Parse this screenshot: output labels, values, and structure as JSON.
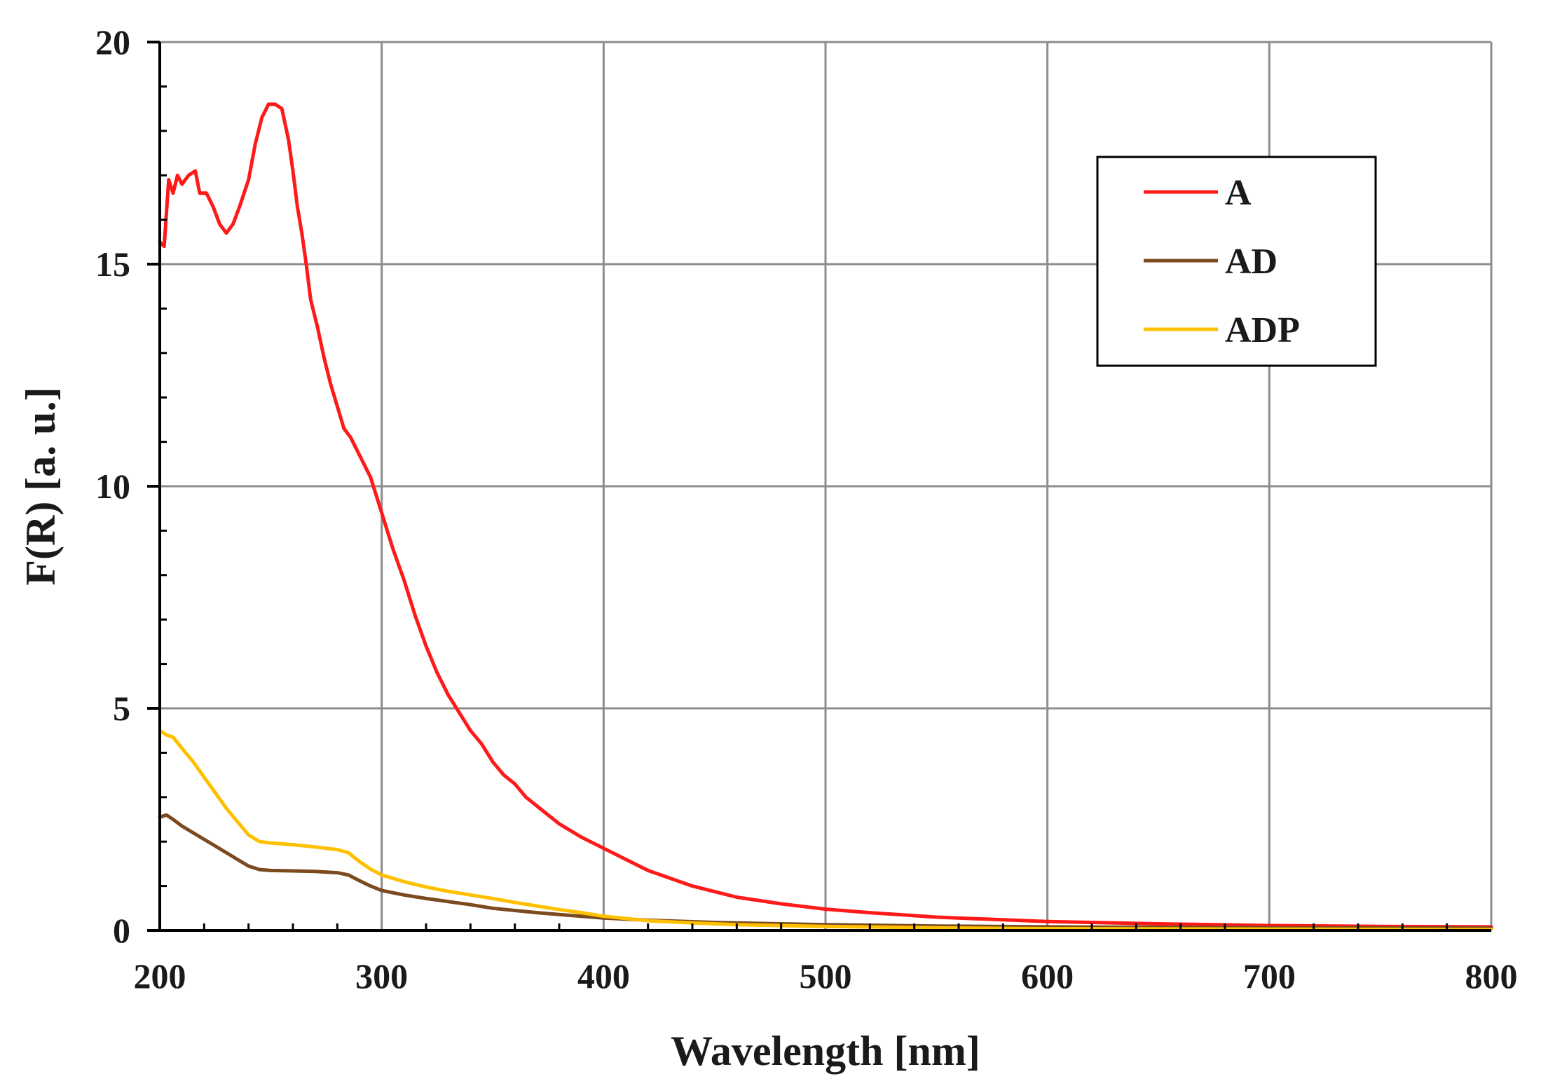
{
  "chart_data": {
    "type": "line",
    "title": "",
    "xlabel": "Wavelength [nm]",
    "ylabel": "F(R) [a. u.]",
    "xlim": [
      200,
      800
    ],
    "ylim": [
      0,
      20
    ],
    "xticks": [
      200,
      300,
      400,
      500,
      600,
      700,
      800
    ],
    "yticks": [
      0,
      5,
      10,
      15,
      20
    ],
    "x_tick_labels": [
      "200",
      "300",
      "400",
      "500",
      "600",
      "700",
      "800"
    ],
    "y_tick_labels": [
      "0",
      "5",
      "10",
      "15",
      "20"
    ],
    "grid": true,
    "legend_position": "top-right",
    "series": [
      {
        "name": "A",
        "color": "#ff1a1a",
        "points": [
          [
            200,
            15.5
          ],
          [
            202,
            15.4
          ],
          [
            204,
            16.9
          ],
          [
            206,
            16.6
          ],
          [
            208,
            17.0
          ],
          [
            210,
            16.8
          ],
          [
            213,
            17.0
          ],
          [
            216,
            17.1
          ],
          [
            218,
            16.6
          ],
          [
            221,
            16.6
          ],
          [
            224,
            16.3
          ],
          [
            227,
            15.9
          ],
          [
            230,
            15.7
          ],
          [
            233,
            15.9
          ],
          [
            236,
            16.3
          ],
          [
            240,
            16.9
          ],
          [
            243,
            17.7
          ],
          [
            246,
            18.3
          ],
          [
            249,
            18.6
          ],
          [
            252,
            18.6
          ],
          [
            255,
            18.5
          ],
          [
            258,
            17.8
          ],
          [
            260,
            17.1
          ],
          [
            262,
            16.3
          ],
          [
            264,
            15.7
          ],
          [
            266,
            15.0
          ],
          [
            268,
            14.2
          ],
          [
            271,
            13.6
          ],
          [
            274,
            12.9
          ],
          [
            277,
            12.3
          ],
          [
            280,
            11.8
          ],
          [
            283,
            11.3
          ],
          [
            286,
            11.1
          ],
          [
            290,
            10.7
          ],
          [
            295,
            10.2
          ],
          [
            300,
            9.4
          ],
          [
            305,
            8.6
          ],
          [
            310,
            7.9
          ],
          [
            315,
            7.1
          ],
          [
            320,
            6.4
          ],
          [
            325,
            5.8
          ],
          [
            330,
            5.3
          ],
          [
            335,
            4.9
          ],
          [
            340,
            4.5
          ],
          [
            345,
            4.2
          ],
          [
            350,
            3.8
          ],
          [
            355,
            3.5
          ],
          [
            360,
            3.3
          ],
          [
            365,
            3.0
          ],
          [
            370,
            2.8
          ],
          [
            380,
            2.4
          ],
          [
            390,
            2.1
          ],
          [
            400,
            1.85
          ],
          [
            420,
            1.35
          ],
          [
            440,
            1.0
          ],
          [
            460,
            0.75
          ],
          [
            480,
            0.6
          ],
          [
            500,
            0.48
          ],
          [
            520,
            0.4
          ],
          [
            550,
            0.3
          ],
          [
            600,
            0.2
          ],
          [
            650,
            0.15
          ],
          [
            700,
            0.11
          ],
          [
            750,
            0.09
          ],
          [
            800,
            0.08
          ]
        ]
      },
      {
        "name": "AD",
        "color": "#7b4a1e",
        "points": [
          [
            200,
            2.55
          ],
          [
            203,
            2.6
          ],
          [
            206,
            2.5
          ],
          [
            210,
            2.35
          ],
          [
            215,
            2.2
          ],
          [
            220,
            2.05
          ],
          [
            225,
            1.9
          ],
          [
            230,
            1.75
          ],
          [
            235,
            1.6
          ],
          [
            240,
            1.45
          ],
          [
            245,
            1.37
          ],
          [
            250,
            1.35
          ],
          [
            260,
            1.34
          ],
          [
            270,
            1.33
          ],
          [
            280,
            1.3
          ],
          [
            285,
            1.25
          ],
          [
            290,
            1.12
          ],
          [
            295,
            1.0
          ],
          [
            300,
            0.9
          ],
          [
            310,
            0.8
          ],
          [
            320,
            0.72
          ],
          [
            330,
            0.65
          ],
          [
            340,
            0.58
          ],
          [
            350,
            0.5
          ],
          [
            360,
            0.45
          ],
          [
            370,
            0.4
          ],
          [
            380,
            0.36
          ],
          [
            390,
            0.32
          ],
          [
            400,
            0.28
          ],
          [
            420,
            0.23
          ],
          [
            450,
            0.18
          ],
          [
            500,
            0.13
          ],
          [
            550,
            0.1
          ],
          [
            600,
            0.08
          ],
          [
            700,
            0.06
          ],
          [
            800,
            0.05
          ]
        ]
      },
      {
        "name": "ADP",
        "color": "#ffc000",
        "points": [
          [
            200,
            4.5
          ],
          [
            203,
            4.4
          ],
          [
            206,
            4.35
          ],
          [
            210,
            4.1
          ],
          [
            215,
            3.8
          ],
          [
            220,
            3.45
          ],
          [
            225,
            3.1
          ],
          [
            230,
            2.75
          ],
          [
            235,
            2.45
          ],
          [
            240,
            2.15
          ],
          [
            245,
            2.0
          ],
          [
            250,
            1.97
          ],
          [
            260,
            1.93
          ],
          [
            270,
            1.88
          ],
          [
            280,
            1.82
          ],
          [
            285,
            1.75
          ],
          [
            290,
            1.55
          ],
          [
            295,
            1.38
          ],
          [
            300,
            1.25
          ],
          [
            310,
            1.1
          ],
          [
            320,
            0.98
          ],
          [
            330,
            0.88
          ],
          [
            340,
            0.8
          ],
          [
            350,
            0.72
          ],
          [
            360,
            0.63
          ],
          [
            370,
            0.55
          ],
          [
            380,
            0.47
          ],
          [
            390,
            0.4
          ],
          [
            400,
            0.32
          ],
          [
            420,
            0.22
          ],
          [
            440,
            0.17
          ],
          [
            460,
            0.13
          ],
          [
            500,
            0.09
          ],
          [
            550,
            0.06
          ],
          [
            600,
            0.04
          ],
          [
            700,
            0.03
          ],
          [
            800,
            0.02
          ]
        ]
      }
    ]
  }
}
